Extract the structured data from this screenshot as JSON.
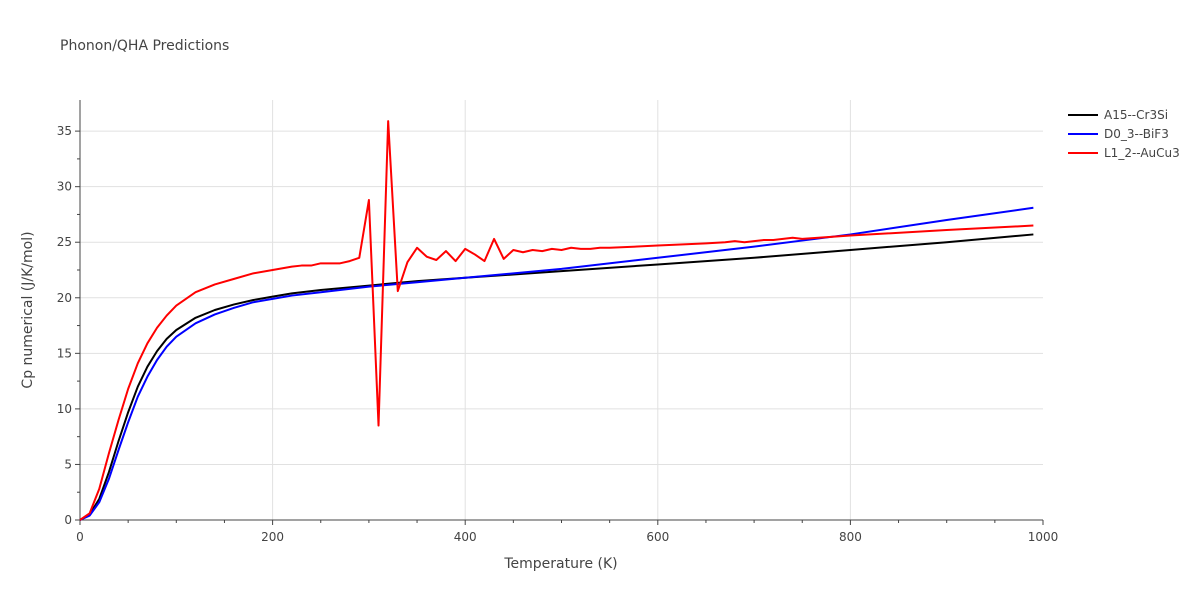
{
  "chart_data": {
    "type": "line",
    "title": "Phonon/QHA Predictions",
    "xlabel": "Temperature (K)",
    "ylabel": "Cp numerical (J/K/mol)",
    "xlim": [
      0,
      1000
    ],
    "ylim": [
      0,
      37.8
    ],
    "xticks": [
      0,
      200,
      400,
      600,
      800,
      1000
    ],
    "yticks": [
      0,
      5,
      10,
      15,
      20,
      25,
      30,
      35
    ],
    "grid": true,
    "legend_position": "top-right",
    "series": [
      {
        "name": "A15--Cr3Si",
        "color": "#000000",
        "x": [
          0,
          10,
          20,
          30,
          40,
          50,
          60,
          70,
          80,
          90,
          100,
          120,
          140,
          160,
          180,
          200,
          220,
          250,
          300,
          350,
          400,
          450,
          500,
          600,
          700,
          800,
          900,
          990
        ],
        "y": [
          0,
          0.5,
          1.9,
          4.3,
          7.1,
          9.7,
          12.0,
          13.8,
          15.2,
          16.3,
          17.1,
          18.2,
          18.9,
          19.4,
          19.8,
          20.1,
          20.4,
          20.7,
          21.1,
          21.5,
          21.8,
          22.1,
          22.4,
          23.0,
          23.6,
          24.3,
          25.0,
          25.7
        ]
      },
      {
        "name": "D0_3--BiF3",
        "color": "#0000ff",
        "x": [
          0,
          10,
          20,
          30,
          40,
          50,
          60,
          70,
          80,
          90,
          100,
          120,
          140,
          160,
          180,
          200,
          220,
          250,
          300,
          350,
          400,
          450,
          500,
          600,
          700,
          800,
          900,
          990
        ],
        "y": [
          0,
          0.4,
          1.6,
          3.7,
          6.3,
          8.8,
          11.1,
          12.9,
          14.4,
          15.6,
          16.5,
          17.7,
          18.5,
          19.1,
          19.6,
          19.9,
          20.2,
          20.5,
          21.0,
          21.4,
          21.8,
          22.2,
          22.6,
          23.6,
          24.6,
          25.7,
          27.0,
          28.1
        ]
      },
      {
        "name": "L1_2--AuCu3",
        "color": "#ff0000",
        "x": [
          0,
          10,
          20,
          30,
          40,
          50,
          60,
          70,
          80,
          90,
          100,
          120,
          140,
          160,
          180,
          200,
          220,
          230,
          240,
          250,
          260,
          270,
          280,
          290,
          300,
          310,
          320,
          330,
          340,
          350,
          360,
          370,
          380,
          390,
          400,
          410,
          420,
          430,
          440,
          450,
          460,
          470,
          480,
          490,
          500,
          510,
          520,
          530,
          540,
          550,
          600,
          650,
          670,
          680,
          690,
          700,
          710,
          720,
          730,
          740,
          750,
          800,
          900,
          990
        ],
        "y": [
          0,
          0.6,
          2.8,
          6.0,
          9.0,
          11.8,
          14.1,
          15.9,
          17.3,
          18.4,
          19.3,
          20.5,
          21.2,
          21.7,
          22.2,
          22.5,
          22.8,
          22.9,
          22.9,
          23.1,
          23.1,
          23.1,
          23.3,
          23.6,
          28.8,
          8.5,
          35.9,
          20.6,
          23.2,
          24.5,
          23.7,
          23.4,
          24.2,
          23.3,
          24.4,
          23.9,
          23.3,
          25.3,
          23.5,
          24.3,
          24.1,
          24.3,
          24.2,
          24.4,
          24.3,
          24.5,
          24.4,
          24.4,
          24.5,
          24.5,
          24.7,
          24.9,
          25.0,
          25.1,
          25.0,
          25.1,
          25.2,
          25.2,
          25.3,
          25.4,
          25.3,
          25.6,
          26.1,
          26.5
        ]
      }
    ]
  }
}
